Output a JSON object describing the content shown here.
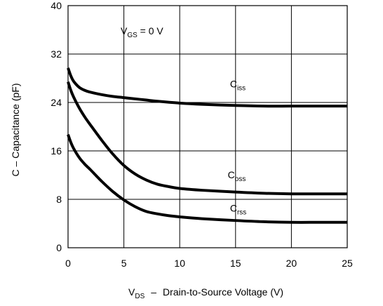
{
  "chart_data": {
    "type": "line",
    "title": "",
    "xlabel": "Drain-to-Source Voltage (V)",
    "xlabel_symbol": "V",
    "xlabel_symbol_sub": "DS",
    "xlabel_dash": "–",
    "ylabel": "C  –  Capacitance (pF)",
    "xlim": [
      0,
      25
    ],
    "ylim": [
      0,
      40
    ],
    "xticks": [
      0,
      5,
      10,
      15,
      20,
      25
    ],
    "yticks": [
      0,
      8,
      16,
      24,
      32,
      40
    ],
    "grid": true,
    "legend": "none",
    "annotation": {
      "symbol": "V",
      "sub": "GS",
      "rest": " = 0 V"
    },
    "series": [
      {
        "name": "Ciss",
        "label_main": "C",
        "label_sub": "iss",
        "x": [
          0,
          0.25,
          0.5,
          1,
          1.5,
          2,
          3,
          4,
          5,
          6,
          7,
          8,
          10,
          12,
          15,
          17.5,
          20,
          22.5,
          25
        ],
        "y": [
          29.7,
          28.4,
          27.5,
          26.5,
          26.0,
          25.7,
          25.3,
          25.0,
          24.8,
          24.6,
          24.4,
          24.2,
          23.9,
          23.7,
          23.5,
          23.4,
          23.4,
          23.4,
          23.4
        ]
      },
      {
        "name": "Coss",
        "label_main": "C",
        "label_sub": "oss",
        "x": [
          0,
          0.25,
          0.5,
          1,
          1.5,
          2,
          3,
          4,
          5,
          6,
          7,
          8,
          9,
          10,
          12,
          15,
          17.5,
          20,
          22.5,
          25
        ],
        "y": [
          27.4,
          26.0,
          24.9,
          23.1,
          21.6,
          20.3,
          17.8,
          15.5,
          13.6,
          12.2,
          11.2,
          10.5,
          10.1,
          9.8,
          9.5,
          9.2,
          9.0,
          8.9,
          8.9,
          8.9
        ]
      },
      {
        "name": "Crss",
        "label_main": "C",
        "label_sub": "rss",
        "x": [
          0,
          0.25,
          0.5,
          1,
          1.5,
          2,
          3,
          4,
          5,
          6,
          7,
          8,
          9,
          10,
          12,
          15,
          17.5,
          20,
          22.5,
          25
        ],
        "y": [
          18.7,
          17.4,
          16.4,
          14.9,
          13.8,
          12.9,
          11.0,
          9.3,
          7.9,
          6.8,
          6.0,
          5.6,
          5.3,
          5.1,
          4.8,
          4.5,
          4.3,
          4.2,
          4.2,
          4.2
        ]
      }
    ]
  }
}
